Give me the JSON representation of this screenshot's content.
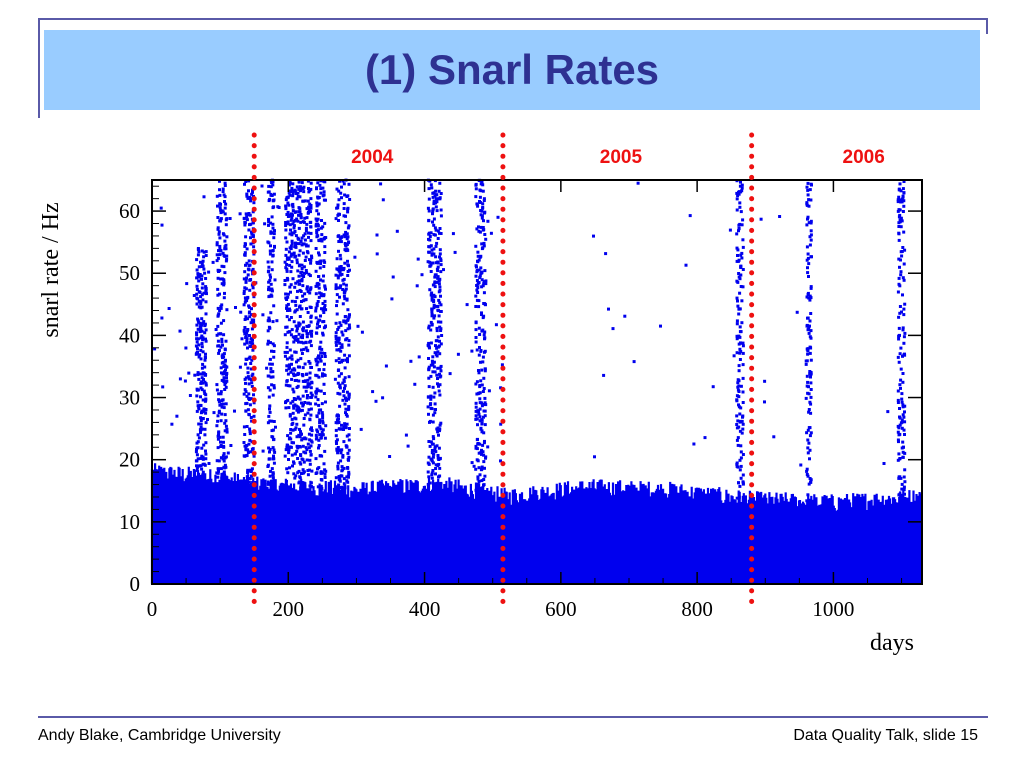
{
  "slide": {
    "title": "(1) Snarl Rates",
    "footer_left": "Andy Blake, Cambridge University",
    "footer_right": "Data Quality Talk, slide 15",
    "colors": {
      "title_band": "#99ccff",
      "title_text": "#2e3192",
      "frame": "#5a5aa8",
      "points": "#0000ee",
      "markers": "#ee1111"
    }
  },
  "chart_data": {
    "type": "scatter",
    "title": "",
    "xlabel": "days",
    "ylabel": "snarl rate / Hz",
    "xlim": [
      0,
      1130
    ],
    "ylim": [
      0,
      65
    ],
    "x_ticks": [
      0,
      200,
      400,
      600,
      800,
      1000
    ],
    "y_ticks": [
      0,
      10,
      20,
      30,
      40,
      50,
      60
    ],
    "grid": false,
    "series": [
      {
        "color": "#0000ee",
        "baseline_profile": [
          {
            "x": 0,
            "y": 18
          },
          {
            "x": 100,
            "y": 17
          },
          {
            "x": 150,
            "y": 16
          },
          {
            "x": 300,
            "y": 15
          },
          {
            "x": 420,
            "y": 16
          },
          {
            "x": 520,
            "y": 14
          },
          {
            "x": 640,
            "y": 15.5
          },
          {
            "x": 760,
            "y": 15
          },
          {
            "x": 880,
            "y": 13.5
          },
          {
            "x": 1000,
            "y": 13
          },
          {
            "x": 1130,
            "y": 14
          }
        ],
        "spike_ranges": [
          {
            "x": [
              65,
              80
            ],
            "y_max": 55
          },
          {
            "x": [
              95,
              110
            ],
            "y_max": 65
          },
          {
            "x": [
              135,
              150
            ],
            "y_max": 65
          },
          {
            "x": [
              170,
              180
            ],
            "y_max": 65
          },
          {
            "x": [
              195,
              235
            ],
            "y_max": 65
          },
          {
            "x": [
              240,
              255
            ],
            "y_max": 65
          },
          {
            "x": [
              270,
              290
            ],
            "y_max": 65
          },
          {
            "x": [
              405,
              425
            ],
            "y_max": 65
          },
          {
            "x": [
              475,
              490
            ],
            "y_max": 65
          },
          {
            "x": [
              858,
              868
            ],
            "y_max": 65
          },
          {
            "x": [
              960,
              968
            ],
            "y_max": 65
          },
          {
            "x": [
              1095,
              1105
            ],
            "y_max": 65
          }
        ]
      }
    ],
    "vertical_markers": [
      {
        "x": 150,
        "label": "2004"
      },
      {
        "x": 515,
        "label": "2005"
      },
      {
        "x": 880,
        "label": "2006"
      }
    ]
  }
}
